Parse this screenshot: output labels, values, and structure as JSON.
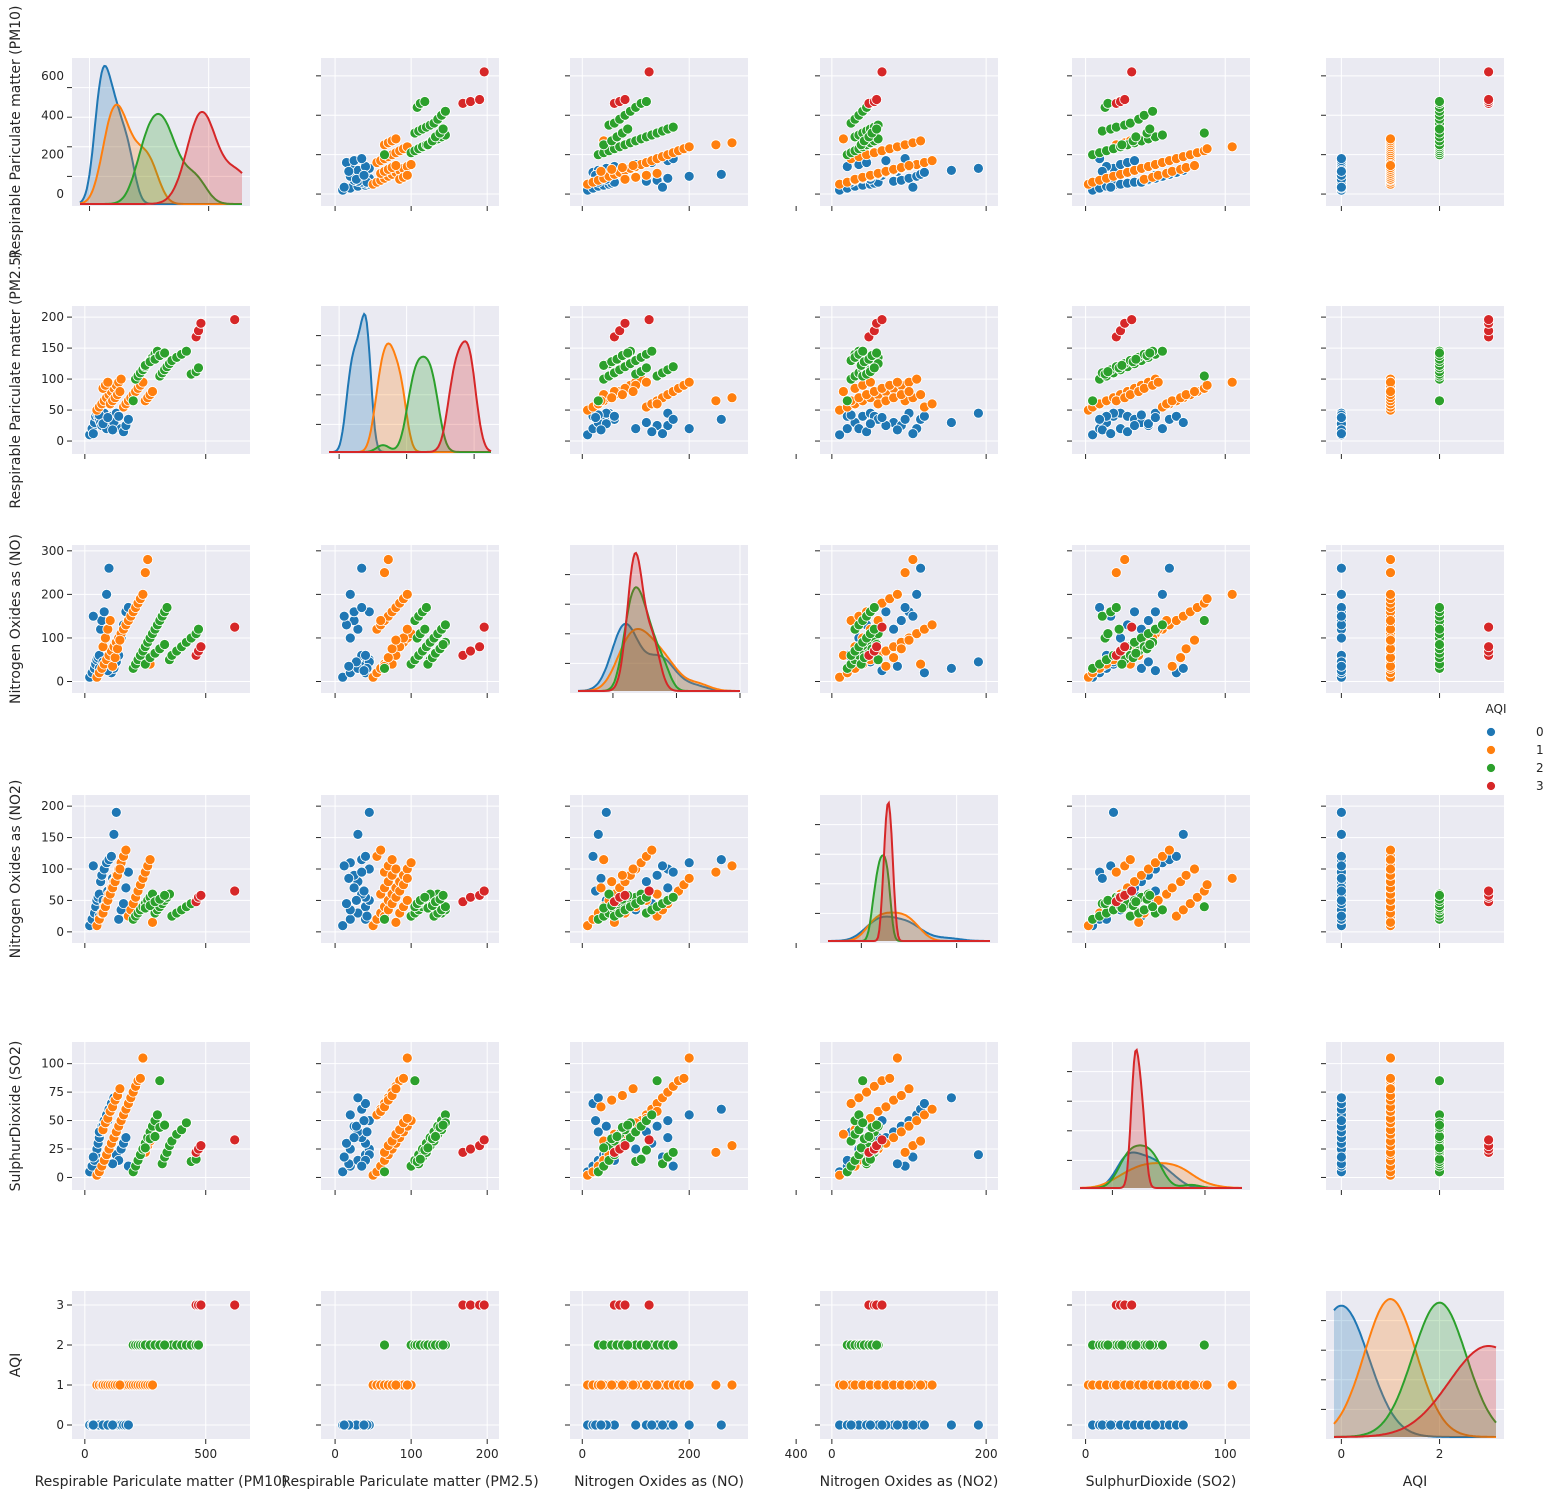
{
  "chart_data": {
    "type": "scatter",
    "variables": [
      {
        "name": "Respirable Pariculate matter (PM10)",
        "range": [
          -20,
          650
        ],
        "ticks": [
          0,
          200,
          400,
          600
        ],
        "xticklabels": [
          0,
          500
        ],
        "xticklabel_values": [
          0,
          500
        ],
        "kde_range": [
          -40,
          640
        ]
      },
      {
        "name": "Respirable Pariculate matter (PM2.5)",
        "range": [
          -8,
          205
        ],
        "ticks": [
          0,
          50,
          100,
          150,
          200
        ],
        "xticklabels": [
          0,
          100,
          200
        ],
        "xticklabel_values": [
          0,
          100,
          200
        ],
        "kde_range": [
          -15,
          225
        ]
      },
      {
        "name": "Nitrogen Oxides as (NO)",
        "range": [
          -8,
          295
        ],
        "ticks": [
          0,
          100,
          200,
          300
        ],
        "xticklabels": [
          0,
          200,
          400
        ],
        "xticklabel_values": [
          0,
          200,
          400
        ],
        "kde_range": [
          -110,
          400
        ]
      },
      {
        "name": "Nitrogen Oxides as (NO2)",
        "range": [
          -5,
          205
        ],
        "ticks": [
          0,
          50,
          100,
          150,
          200
        ],
        "xticklabels": [
          0,
          200
        ],
        "xticklabel_values": [
          0,
          200
        ],
        "kde_range": [
          -70,
          270
        ]
      },
      {
        "name": "SulphurDioxide (SO2)",
        "range": [
          -4,
          112
        ],
        "ticks": [
          0,
          25,
          50,
          75,
          100
        ],
        "xticklabels": [
          0,
          100
        ],
        "xticklabel_values": [
          0,
          100
        ],
        "kde_range": [
          -35,
          140
        ]
      },
      {
        "name": "AQI",
        "range": [
          -0.15,
          3.15
        ],
        "ticks": [
          0,
          1,
          2,
          3
        ],
        "xticklabels": [
          0,
          2
        ],
        "xticklabel_values": [
          0,
          2
        ],
        "kde_range": [
          -0.15,
          3.15
        ]
      }
    ],
    "hue": {
      "name": "AQI",
      "levels": [
        "0",
        "1",
        "2",
        "3"
      ],
      "colors": [
        "#1f77b4",
        "#ff7f0e",
        "#2ca02c",
        "#d62728"
      ]
    },
    "legend": {
      "title": "AQI",
      "placement": "right"
    },
    "grid": true,
    "diagonal": "kde",
    "groups": [
      {
        "aqi": 0,
        "pm10": [
          20,
          30,
          40,
          45,
          50,
          55,
          60,
          65,
          70,
          80,
          90,
          100,
          110,
          120,
          130,
          140,
          150,
          160,
          170,
          180,
          60,
          75,
          95,
          115,
          35
        ],
        "pm25": [
          10,
          20,
          30,
          40,
          45,
          40,
          35,
          30,
          25,
          45,
          20,
          35,
          40,
          30,
          45,
          40,
          20,
          15,
          25,
          35,
          42,
          28,
          38,
          18,
          12
        ],
        "no": [
          10,
          20,
          30,
          40,
          50,
          55,
          60,
          120,
          140,
          160,
          200,
          260,
          20,
          30,
          45,
          60,
          100,
          130,
          160,
          170,
          30,
          45,
          25,
          35,
          150
        ],
        "no2": [
          10,
          20,
          30,
          40,
          50,
          55,
          60,
          80,
          90,
          100,
          110,
          115,
          120,
          155,
          190,
          20,
          35,
          45,
          70,
          95,
          25,
          50,
          65,
          85,
          105
        ],
        "so2": [
          5,
          10,
          15,
          20,
          25,
          30,
          35,
          40,
          45,
          50,
          55,
          60,
          65,
          70,
          20,
          15,
          25,
          30,
          35,
          10,
          40,
          45,
          50,
          12,
          18
        ]
      },
      {
        "aqi": 1,
        "pm10": [
          50,
          60,
          70,
          80,
          90,
          100,
          110,
          120,
          130,
          140,
          150,
          160,
          170,
          180,
          190,
          200,
          210,
          220,
          230,
          240,
          250,
          260,
          270,
          280,
          75,
          85,
          95,
          105,
          115,
          125,
          135,
          145
        ],
        "pm25": [
          50,
          55,
          60,
          65,
          70,
          75,
          80,
          85,
          90,
          95,
          100,
          55,
          60,
          65,
          70,
          75,
          80,
          85,
          90,
          95,
          65,
          70,
          75,
          80,
          85,
          90,
          95,
          60,
          65,
          70,
          75,
          80
        ],
        "no": [
          10,
          20,
          30,
          40,
          50,
          60,
          70,
          80,
          90,
          100,
          110,
          120,
          130,
          140,
          150,
          160,
          170,
          180,
          190,
          200,
          250,
          280,
          40,
          60,
          80,
          100,
          120,
          140,
          35,
          55,
          75,
          95
        ],
        "no2": [
          10,
          20,
          30,
          40,
          50,
          60,
          70,
          80,
          90,
          100,
          110,
          120,
          130,
          25,
          35,
          45,
          55,
          65,
          75,
          85,
          95,
          105,
          115,
          15,
          30,
          40,
          50,
          60,
          70,
          80,
          90,
          100
        ],
        "so2": [
          2,
          5,
          10,
          15,
          20,
          25,
          30,
          35,
          40,
          45,
          50,
          55,
          60,
          65,
          70,
          75,
          80,
          85,
          87,
          105,
          22,
          28,
          32,
          38,
          42,
          48,
          52,
          58,
          62,
          68,
          72,
          78
        ]
      },
      {
        "aqi": 2,
        "pm10": [
          200,
          210,
          220,
          230,
          240,
          250,
          260,
          270,
          280,
          290,
          300,
          310,
          320,
          330,
          340,
          350,
          360,
          380,
          400,
          420,
          440,
          460,
          470,
          250,
          270,
          290,
          310,
          330
        ],
        "pm25": [
          65,
          100,
          105,
          110,
          115,
          120,
          125,
          130,
          135,
          140,
          145,
          105,
          110,
          115,
          120,
          125,
          130,
          135,
          140,
          145,
          108,
          112,
          118,
          122,
          128,
          132,
          138,
          142
        ],
        "no": [
          30,
          40,
          50,
          60,
          70,
          80,
          90,
          100,
          110,
          120,
          130,
          140,
          150,
          160,
          170,
          50,
          60,
          70,
          80,
          90,
          100,
          110,
          120,
          40,
          55,
          65,
          75,
          85
        ],
        "no2": [
          20,
          25,
          30,
          35,
          40,
          45,
          50,
          55,
          60,
          30,
          35,
          40,
          45,
          50,
          55,
          60,
          25,
          30,
          35,
          40,
          45,
          50,
          55,
          38,
          42,
          48,
          52,
          58
        ],
        "so2": [
          5,
          10,
          15,
          20,
          25,
          30,
          35,
          40,
          45,
          50,
          55,
          85,
          12,
          18,
          22,
          28,
          32,
          38,
          42,
          48,
          14,
          16,
          24,
          26,
          34,
          36,
          44,
          46
        ]
      },
      {
        "aqi": 3,
        "pm10": [
          460,
          470,
          480,
          620
        ],
        "pm25": [
          168,
          178,
          190,
          196
        ],
        "no": [
          60,
          70,
          80,
          125
        ],
        "no2": [
          48,
          55,
          58,
          65
        ],
        "so2": [
          22,
          25,
          28,
          33
        ]
      }
    ]
  }
}
